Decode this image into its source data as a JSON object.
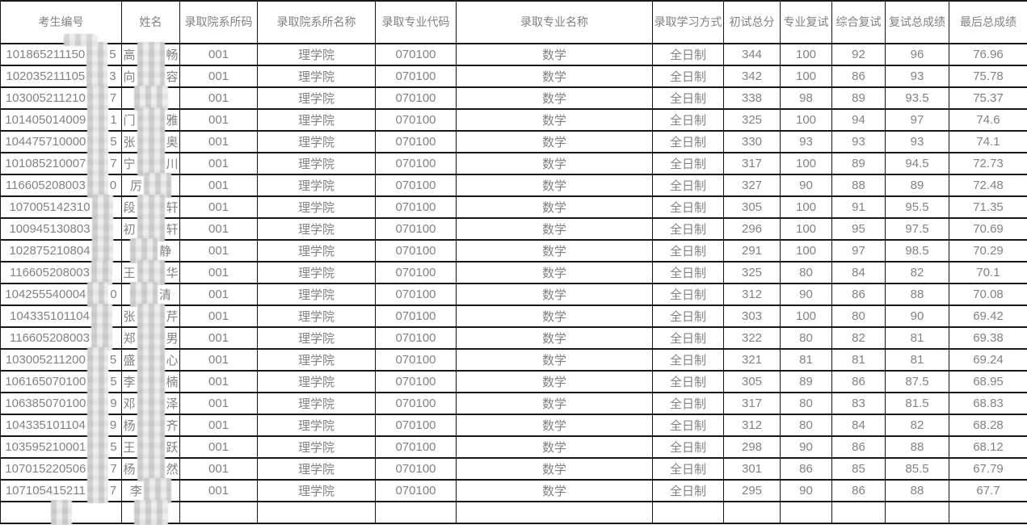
{
  "header": {
    "columns": [
      {
        "key": "exam_id",
        "label": "考生编号"
      },
      {
        "key": "name",
        "label": "姓名"
      },
      {
        "key": "dept_code",
        "label": "录取院系所码"
      },
      {
        "key": "dept_name",
        "label": "录取院系所名称"
      },
      {
        "key": "major_code",
        "label": "录取专业代码"
      },
      {
        "key": "major_name",
        "label": "录取专业名称"
      },
      {
        "key": "study_mode",
        "label": "录取学习方式"
      },
      {
        "key": "initial_total",
        "label": "初试总分"
      },
      {
        "key": "major_retest",
        "label": "专业复试"
      },
      {
        "key": "comprehensive_retest",
        "label": "综合复试"
      },
      {
        "key": "retest_total",
        "label": "复试总成绩"
      },
      {
        "key": "final_total",
        "label": "最后总成绩"
      }
    ]
  },
  "rows": [
    {
      "exam_id_prefix": "101865211150",
      "exam_id_suffix": "5",
      "name_first": "高",
      "name_last": "畅",
      "dept_code": "001",
      "dept_name": "理学院",
      "major_code": "070100",
      "major_name": "数学",
      "study_mode": "全日制",
      "initial_total": "344",
      "major_retest": "100",
      "comprehensive_retest": "92",
      "retest_total": "96",
      "final_total": "76.96"
    },
    {
      "exam_id_prefix": "102035211105",
      "exam_id_suffix": "3",
      "name_first": "向",
      "name_last": "容",
      "dept_code": "001",
      "dept_name": "理学院",
      "major_code": "070100",
      "major_name": "数学",
      "study_mode": "全日制",
      "initial_total": "342",
      "major_retest": "100",
      "comprehensive_retest": "86",
      "retest_total": "93",
      "final_total": "75.78"
    },
    {
      "exam_id_prefix": "103005211210",
      "exam_id_suffix": "7",
      "name_first": "",
      "name_last": "",
      "dept_code": "001",
      "dept_name": "理学院",
      "major_code": "070100",
      "major_name": "数学",
      "study_mode": "全日制",
      "initial_total": "338",
      "major_retest": "98",
      "comprehensive_retest": "89",
      "retest_total": "93.5",
      "final_total": "75.37"
    },
    {
      "exam_id_prefix": "101405014009",
      "exam_id_suffix": "1",
      "name_first": "门",
      "name_last": "雅",
      "dept_code": "001",
      "dept_name": "理学院",
      "major_code": "070100",
      "major_name": "数学",
      "study_mode": "全日制",
      "initial_total": "325",
      "major_retest": "100",
      "comprehensive_retest": "94",
      "retest_total": "97",
      "final_total": "74.6"
    },
    {
      "exam_id_prefix": "104475710000",
      "exam_id_suffix": "5",
      "name_first": "张",
      "name_last": "奥",
      "dept_code": "001",
      "dept_name": "理学院",
      "major_code": "070100",
      "major_name": "数学",
      "study_mode": "全日制",
      "initial_total": "330",
      "major_retest": "93",
      "comprehensive_retest": "93",
      "retest_total": "93",
      "final_total": "74.1"
    },
    {
      "exam_id_prefix": "101085210007",
      "exam_id_suffix": "7",
      "name_first": "宁",
      "name_last": "川",
      "dept_code": "001",
      "dept_name": "理学院",
      "major_code": "070100",
      "major_name": "数学",
      "study_mode": "全日制",
      "initial_total": "317",
      "major_retest": "100",
      "comprehensive_retest": "89",
      "retest_total": "94.5",
      "final_total": "72.73"
    },
    {
      "exam_id_prefix": "116605208003",
      "exam_id_suffix": "0",
      "name_first": "厉",
      "name_last": "",
      "dept_code": "001",
      "dept_name": "理学院",
      "major_code": "070100",
      "major_name": "数学",
      "study_mode": "全日制",
      "initial_total": "327",
      "major_retest": "90",
      "comprehensive_retest": "88",
      "retest_total": "89",
      "final_total": "72.48"
    },
    {
      "exam_id_prefix": "107005142310",
      "exam_id_suffix": "",
      "name_first": "段",
      "name_last": "轩",
      "dept_code": "001",
      "dept_name": "理学院",
      "major_code": "070100",
      "major_name": "数学",
      "study_mode": "全日制",
      "initial_total": "305",
      "major_retest": "100",
      "comprehensive_retest": "91",
      "retest_total": "95.5",
      "final_total": "71.35"
    },
    {
      "exam_id_prefix": "100945130803",
      "exam_id_suffix": "",
      "name_first": "初",
      "name_last": "轩",
      "dept_code": "001",
      "dept_name": "理学院",
      "major_code": "070100",
      "major_name": "数学",
      "study_mode": "全日制",
      "initial_total": "296",
      "major_retest": "100",
      "comprehensive_retest": "95",
      "retest_total": "97.5",
      "final_total": "70.69"
    },
    {
      "exam_id_prefix": "102875210804",
      "exam_id_suffix": "",
      "name_first": "",
      "name_last": "静",
      "dept_code": "001",
      "dept_name": "理学院",
      "major_code": "070100",
      "major_name": "数学",
      "study_mode": "全日制",
      "initial_total": "291",
      "major_retest": "100",
      "comprehensive_retest": "97",
      "retest_total": "98.5",
      "final_total": "70.29"
    },
    {
      "exam_id_prefix": "116605208003",
      "exam_id_suffix": "",
      "name_first": "王",
      "name_last": "华",
      "dept_code": "001",
      "dept_name": "理学院",
      "major_code": "070100",
      "major_name": "数学",
      "study_mode": "全日制",
      "initial_total": "325",
      "major_retest": "80",
      "comprehensive_retest": "84",
      "retest_total": "82",
      "final_total": "70.1"
    },
    {
      "exam_id_prefix": "104255540004",
      "exam_id_suffix": "0",
      "name_first": "",
      "name_last": "清",
      "dept_code": "001",
      "dept_name": "理学院",
      "major_code": "070100",
      "major_name": "数学",
      "study_mode": "全日制",
      "initial_total": "312",
      "major_retest": "90",
      "comprehensive_retest": "86",
      "retest_total": "88",
      "final_total": "70.08"
    },
    {
      "exam_id_prefix": "104335101104",
      "exam_id_suffix": "",
      "name_first": "张",
      "name_last": "芹",
      "dept_code": "001",
      "dept_name": "理学院",
      "major_code": "070100",
      "major_name": "数学",
      "study_mode": "全日制",
      "initial_total": "303",
      "major_retest": "100",
      "comprehensive_retest": "80",
      "retest_total": "90",
      "final_total": "69.42"
    },
    {
      "exam_id_prefix": "116605208003",
      "exam_id_suffix": "",
      "name_first": "郑",
      "name_last": "男",
      "dept_code": "001",
      "dept_name": "理学院",
      "major_code": "070100",
      "major_name": "数学",
      "study_mode": "全日制",
      "initial_total": "322",
      "major_retest": "80",
      "comprehensive_retest": "82",
      "retest_total": "81",
      "final_total": "69.38"
    },
    {
      "exam_id_prefix": "103005211200",
      "exam_id_suffix": "5",
      "name_first": "盛",
      "name_last": "心",
      "dept_code": "001",
      "dept_name": "理学院",
      "major_code": "070100",
      "major_name": "数学",
      "study_mode": "全日制",
      "initial_total": "321",
      "major_retest": "81",
      "comprehensive_retest": "81",
      "retest_total": "81",
      "final_total": "69.24"
    },
    {
      "exam_id_prefix": "106165070100",
      "exam_id_suffix": "5",
      "name_first": "李",
      "name_last": "楠",
      "dept_code": "001",
      "dept_name": "理学院",
      "major_code": "070100",
      "major_name": "数学",
      "study_mode": "全日制",
      "initial_total": "305",
      "major_retest": "89",
      "comprehensive_retest": "86",
      "retest_total": "87.5",
      "final_total": "68.95"
    },
    {
      "exam_id_prefix": "106385070100",
      "exam_id_suffix": "9",
      "name_first": "邓",
      "name_last": "泽",
      "dept_code": "001",
      "dept_name": "理学院",
      "major_code": "070100",
      "major_name": "数学",
      "study_mode": "全日制",
      "initial_total": "317",
      "major_retest": "80",
      "comprehensive_retest": "83",
      "retest_total": "81.5",
      "final_total": "68.83"
    },
    {
      "exam_id_prefix": "104335101104",
      "exam_id_suffix": "9",
      "name_first": "杨",
      "name_last": "齐",
      "dept_code": "001",
      "dept_name": "理学院",
      "major_code": "070100",
      "major_name": "数学",
      "study_mode": "全日制",
      "initial_total": "312",
      "major_retest": "80",
      "comprehensive_retest": "84",
      "retest_total": "82",
      "final_total": "68.28"
    },
    {
      "exam_id_prefix": "103595210001",
      "exam_id_suffix": "5",
      "name_first": "王",
      "name_last": "跃",
      "dept_code": "001",
      "dept_name": "理学院",
      "major_code": "070100",
      "major_name": "数学",
      "study_mode": "全日制",
      "initial_total": "298",
      "major_retest": "90",
      "comprehensive_retest": "86",
      "retest_total": "88",
      "final_total": "68.12"
    },
    {
      "exam_id_prefix": "107015220506",
      "exam_id_suffix": "7",
      "name_first": "杨",
      "name_last": "然",
      "dept_code": "001",
      "dept_name": "理学院",
      "major_code": "070100",
      "major_name": "数学",
      "study_mode": "全日制",
      "initial_total": "301",
      "major_retest": "86",
      "comprehensive_retest": "85",
      "retest_total": "85.5",
      "final_total": "67.79"
    },
    {
      "exam_id_prefix": "107105415211",
      "exam_id_suffix": "7",
      "name_first": "李",
      "name_last": "",
      "dept_code": "001",
      "dept_name": "理学院",
      "major_code": "070100",
      "major_name": "数学",
      "study_mode": "全日制",
      "initial_total": "295",
      "major_retest": "90",
      "comprehensive_retest": "86",
      "retest_total": "88",
      "final_total": "67.7"
    }
  ],
  "partial_bottom_row": true,
  "colors": {
    "text": "#828282",
    "border": "#161616",
    "background": "#ffffff",
    "redaction": "#dcdcdc"
  }
}
